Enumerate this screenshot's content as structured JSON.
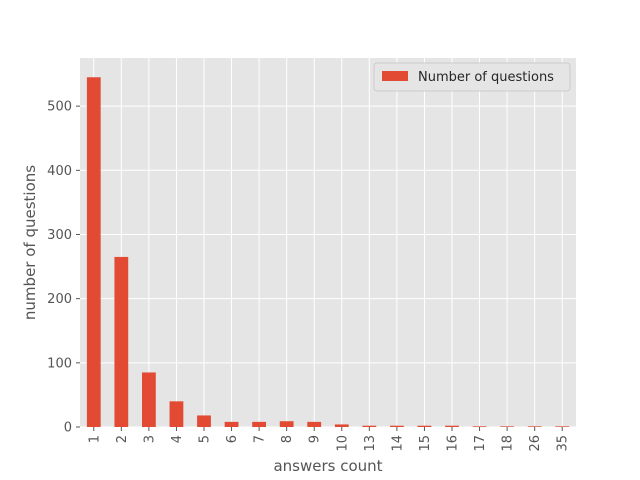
{
  "chart_data": {
    "type": "bar",
    "categories": [
      "1",
      "2",
      "3",
      "4",
      "5",
      "6",
      "7",
      "8",
      "9",
      "10",
      "13",
      "14",
      "15",
      "16",
      "17",
      "18",
      "26",
      "35"
    ],
    "series": [
      {
        "name": "Number of questions",
        "values": [
          545,
          265,
          85,
          40,
          18,
          8,
          8,
          9,
          8,
          4,
          2,
          2,
          2,
          2,
          1,
          1,
          1,
          1
        ]
      }
    ],
    "xlabel": "answers count",
    "ylabel": "number of questions",
    "ylim": [
      0,
      575
    ],
    "yticks": [
      0,
      100,
      200,
      300,
      400,
      500
    ],
    "grid": true,
    "legend_position": "top-right",
    "colors": {
      "bar": "#E24A33",
      "plot_bg": "#E5E5E5",
      "grid": "#FFFFFF",
      "tick_text": "#555555"
    }
  }
}
